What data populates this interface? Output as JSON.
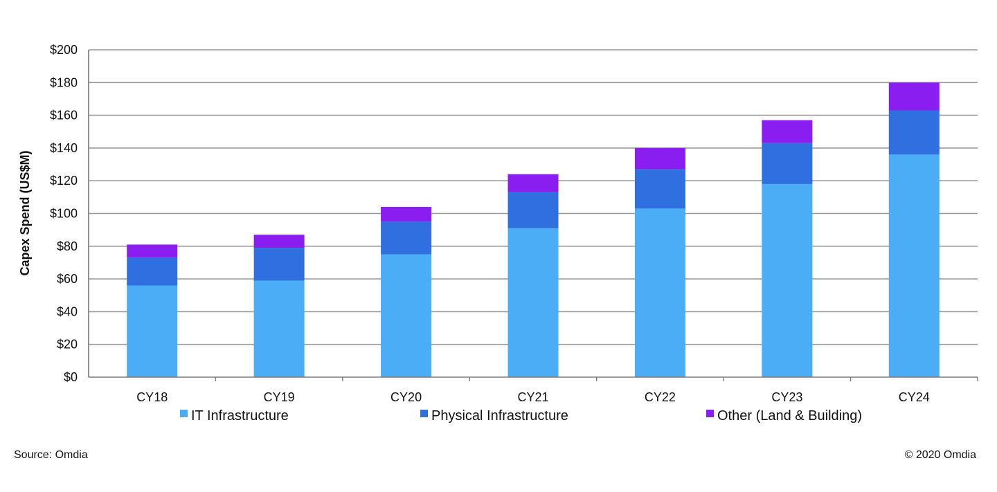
{
  "chart_data": {
    "type": "bar",
    "stacked": true,
    "categories": [
      "CY18",
      "CY19",
      "CY20",
      "CY21",
      "CY22",
      "CY23",
      "CY24"
    ],
    "series": [
      {
        "name": "IT Infrastructure",
        "color": "#4AADF5",
        "values": [
          56,
          59,
          75,
          91,
          103,
          118,
          136
        ]
      },
      {
        "name": "Physical Infrastructure",
        "color": "#2F6FE0",
        "values": [
          17,
          20,
          20,
          22,
          24,
          25,
          27
        ]
      },
      {
        "name": "Other (Land & Building)",
        "color": "#8A1EF0",
        "values": [
          8,
          8,
          9,
          11,
          13,
          14,
          17
        ]
      }
    ],
    "title": "",
    "xlabel": "",
    "ylabel": "Capex Spend (US$M)",
    "ylim": [
      0,
      200
    ],
    "ytick_step": 20,
    "ytick_labels": [
      "$0",
      "$20",
      "$40",
      "$60",
      "$80",
      "$100",
      "$120",
      "$140",
      "$160",
      "$180",
      "$200"
    ],
    "grid": true,
    "legend_position": "bottom"
  },
  "footer": {
    "source": "Source: Omdia",
    "copyright": "© 2020 Omdia"
  }
}
